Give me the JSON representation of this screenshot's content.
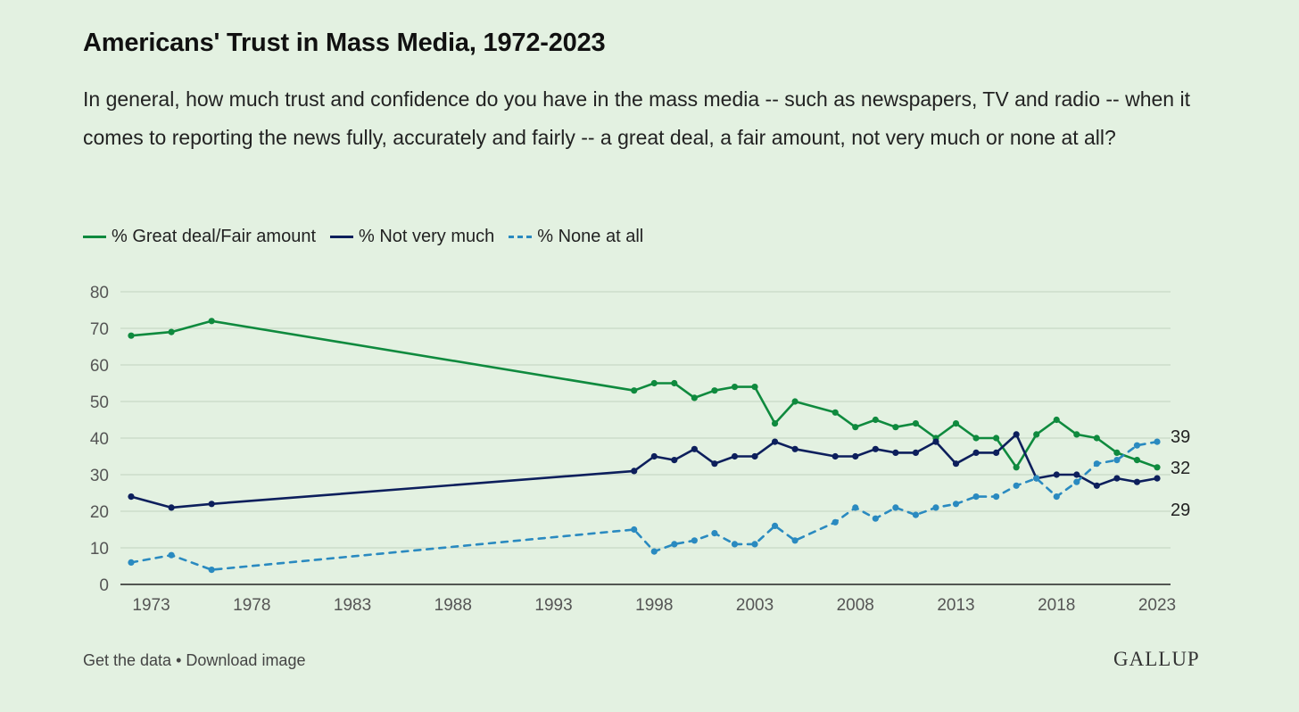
{
  "title": "Americans' Trust in Mass Media, 1972-2023",
  "subtitle": "In general, how much trust and confidence do you have in the mass media -- such as newspapers, TV and radio -- when it comes to reporting the news fully, accurately and fairly -- a great deal, a fair amount, not very much or none at all?",
  "footer": {
    "get_data": "Get the data",
    "separator": " • ",
    "download": "Download image"
  },
  "logo": "GALLUP",
  "chart_data": {
    "type": "line",
    "ylim": [
      0,
      80
    ],
    "xlim": [
      1972,
      2023
    ],
    "yticks": [
      0,
      10,
      20,
      30,
      40,
      50,
      60,
      70,
      80
    ],
    "xticks": [
      1973,
      1978,
      1983,
      1988,
      1993,
      1998,
      2003,
      2008,
      2013,
      2018,
      2023
    ],
    "grid": true,
    "legend_position": "top-left",
    "x": [
      1972,
      1974,
      1976,
      1997,
      1998,
      1999,
      2000,
      2001,
      2002,
      2003,
      2004,
      2005,
      2007,
      2008,
      2009,
      2010,
      2011,
      2012,
      2013,
      2014,
      2015,
      2016,
      2017,
      2018,
      2019,
      2020,
      2021,
      2022,
      2023
    ],
    "series": [
      {
        "name": "% Great deal/Fair amount",
        "color": "#0f8a3e",
        "dashed": false,
        "values": [
          68,
          69,
          72,
          53,
          55,
          55,
          51,
          53,
          54,
          54,
          44,
          50,
          47,
          43,
          45,
          43,
          44,
          40,
          44,
          40,
          40,
          32,
          41,
          45,
          41,
          40,
          36,
          34,
          32
        ],
        "end_label": "32"
      },
      {
        "name": "% Not very much",
        "color": "#0d1f5c",
        "dashed": false,
        "values": [
          24,
          21,
          22,
          31,
          35,
          34,
          37,
          33,
          35,
          35,
          39,
          37,
          35,
          35,
          37,
          36,
          36,
          39,
          33,
          36,
          36,
          41,
          29,
          30,
          30,
          27,
          29,
          28,
          29
        ],
        "end_label": "29"
      },
      {
        "name": "% None at all",
        "color": "#2a8ac0",
        "dashed": true,
        "values": [
          6,
          8,
          4,
          15,
          9,
          11,
          12,
          14,
          11,
          11,
          16,
          12,
          17,
          21,
          18,
          21,
          19,
          21,
          22,
          24,
          24,
          27,
          29,
          24,
          28,
          33,
          34,
          38,
          39
        ],
        "end_label": "39"
      }
    ]
  }
}
